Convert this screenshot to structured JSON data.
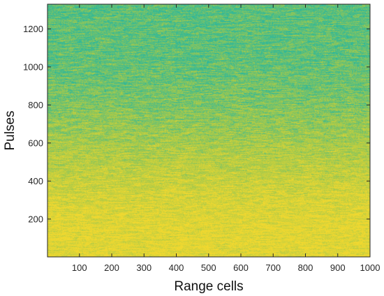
{
  "chart_data": {
    "type": "heatmap",
    "title": "",
    "xlabel": "Range cells",
    "ylabel": "Pulses",
    "xlim": [
      1,
      1000
    ],
    "ylim": [
      1,
      1330
    ],
    "xticks": [
      100,
      200,
      300,
      400,
      500,
      600,
      700,
      800,
      900,
      1000
    ],
    "yticks": [
      200,
      400,
      600,
      800,
      1000,
      1200
    ],
    "grid": false,
    "colorbar": false,
    "colors": {
      "low": "#2fb89a",
      "mid": "#a6c94a",
      "high": "#f0d830",
      "axis": "#262626"
    },
    "intensity_profile": {
      "description_free_values": true,
      "pulse_levels": [
        {
          "pulse": 1,
          "level": 0.92
        },
        {
          "pulse": 200,
          "level": 0.9
        },
        {
          "pulse": 350,
          "level": 0.78
        },
        {
          "pulse": 500,
          "level": 0.62
        },
        {
          "pulse": 650,
          "level": 0.48
        },
        {
          "pulse": 800,
          "level": 0.34
        },
        {
          "pulse": 1000,
          "level": 0.22
        },
        {
          "pulse": 1330,
          "level": 0.18
        }
      ]
    }
  }
}
